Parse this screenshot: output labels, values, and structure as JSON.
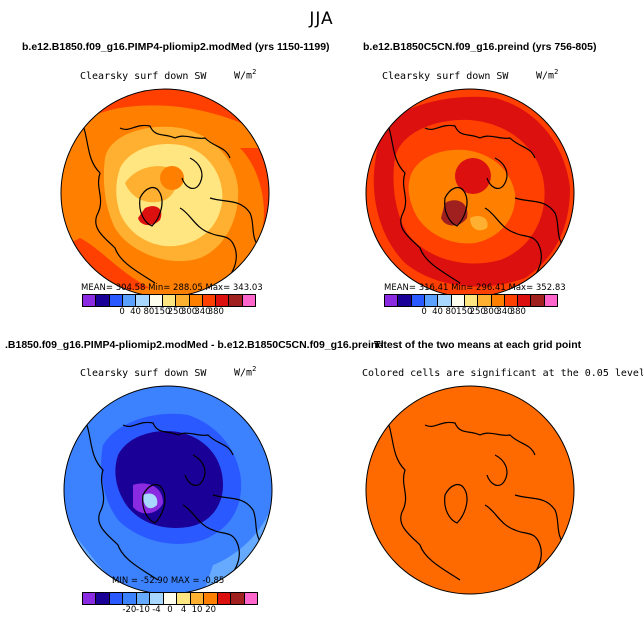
{
  "main_title": "JJA",
  "units_base": "W/m",
  "units_exp": "2",
  "chart_data": [
    {
      "type": "heatmap",
      "title": "b.e12.B1850.f09_g16.PIMP4-pliomip2.modMed (yrs 1150-1199)",
      "subtitle": "Clearsky surf down SW",
      "stats": "MEAN= 304.58   Min= 288.05   Max= 343.03",
      "colorbar": {
        "labels": [
          "0",
          "40",
          "80",
          "150",
          "250",
          "300",
          "340",
          "380"
        ],
        "colors": [
          "#8a2be2",
          "#1a0096",
          "#2a5aff",
          "#5aa0ff",
          "#a8d8ff",
          "#fffff0",
          "#ffe680",
          "#ffb030",
          "#ff8000",
          "#ff4000",
          "#dd1010",
          "#a02020",
          "#ff66cc"
        ]
      }
    },
    {
      "type": "heatmap",
      "title": "b.e12.B1850C5CN.f09_g16.preind (yrs 756-805)",
      "subtitle": "Clearsky surf down SW",
      "stats": "MEAN= 316.41   Min= 296.41   Max= 352.83",
      "colorbar": {
        "labels": [
          "0",
          "40",
          "80",
          "150",
          "250",
          "300",
          "340",
          "380"
        ],
        "colors": [
          "#8a2be2",
          "#1a0096",
          "#2a5aff",
          "#5aa0ff",
          "#a8d8ff",
          "#fffff0",
          "#ffe680",
          "#ffb030",
          "#ff8000",
          "#ff4000",
          "#dd1010",
          "#a02020",
          "#ff66cc"
        ]
      }
    },
    {
      "type": "heatmap",
      "title": ".B1850.f09_g16.PIMP4-pliomip2.modMed - b.e12.B1850C5CN.f09_g16.preind",
      "subtitle": "Clearsky surf down SW",
      "stats": "MIN = -52.90  MAX =  -0.85",
      "colorbar": {
        "labels": [
          "-20",
          "-10",
          "-4",
          "0",
          "4",
          "10",
          "20"
        ],
        "colors": [
          "#8a2be2",
          "#1a0096",
          "#2a5aff",
          "#3c82ff",
          "#66aaff",
          "#a8d8ff",
          "#fffff0",
          "#ffe680",
          "#ffb030",
          "#ff8000",
          "#dd1010",
          "#a02020",
          "#ff66cc"
        ]
      }
    },
    {
      "type": "heatmap",
      "title": "T-test of the two means at each grid point",
      "subtitle": "Colored cells are significant at the 0.05 level"
    }
  ]
}
